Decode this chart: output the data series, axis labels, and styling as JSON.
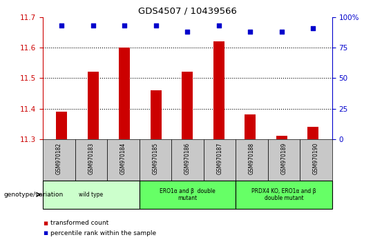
{
  "title": "GDS4507 / 10439566",
  "samples": [
    "GSM970182",
    "GSM970183",
    "GSM970184",
    "GSM970185",
    "GSM970186",
    "GSM970187",
    "GSM970188",
    "GSM970189",
    "GSM970190"
  ],
  "transformed_counts": [
    11.39,
    11.52,
    11.6,
    11.46,
    11.52,
    11.62,
    11.38,
    11.31,
    11.34
  ],
  "percentile_ranks": [
    93,
    93,
    93,
    93,
    88,
    93,
    88,
    88,
    91
  ],
  "ylim_left": [
    11.3,
    11.7
  ],
  "ylim_right": [
    0,
    100
  ],
  "yticks_left": [
    11.3,
    11.4,
    11.5,
    11.6,
    11.7
  ],
  "yticks_right": [
    0,
    25,
    50,
    75,
    100
  ],
  "bar_color": "#cc0000",
  "dot_color": "#0000cc",
  "groups": [
    {
      "label": "wild type",
      "start": 0,
      "end": 3,
      "color": "#ccffcc"
    },
    {
      "label": "ERO1α and β  double\nmutant",
      "start": 3,
      "end": 6,
      "color": "#66ff66"
    },
    {
      "label": "PRDX4 KO, ERO1α and β\ndouble mutant",
      "start": 6,
      "end": 9,
      "color": "#66ff66"
    }
  ],
  "legend_label_bar": "transformed count",
  "legend_label_dot": "percentile rank within the sample",
  "genotype_label": "genotype/variation",
  "background_color": "#ffffff",
  "tick_color_left": "#cc0000",
  "tick_color_right": "#0000cc",
  "sample_box_color": "#c8c8c8",
  "bar_width": 0.35
}
